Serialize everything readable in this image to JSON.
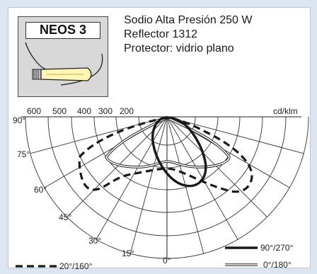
{
  "lamp": {
    "name": "NEOS 3",
    "lines": [
      "Sodio Alta Presión 250 W",
      "Reflector 1312",
      "Protector: vidrio plano"
    ]
  },
  "diagram": {
    "unit": "cd/klm",
    "radial_labels": [
      "600",
      "500",
      "400",
      "300",
      "200"
    ],
    "angle_labels": [
      "90°",
      "75°",
      "60°",
      "45°",
      "30°",
      "15°",
      "0°"
    ],
    "legend": [
      {
        "label": "90°/270°",
        "style": "solid-thick"
      },
      {
        "label": "0°/180°",
        "style": "double"
      },
      {
        "label": "20°/160°",
        "style": "dashed"
      }
    ]
  },
  "colors": {
    "border": "#b9c6da",
    "lamp_glass": "#fdf6b5",
    "lamp_box": "#d8d8d8"
  }
}
